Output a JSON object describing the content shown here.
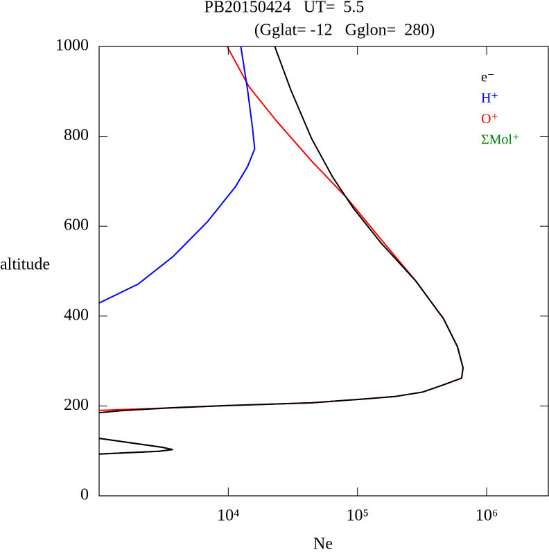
{
  "chart_data": {
    "type": "line",
    "title": "PB20150424   UT=  5.5",
    "subtitle": "(Gglat= -12   Gglon=  280)",
    "x_label": "Ne",
    "y_label": "altitude",
    "x_scale": "log",
    "xlim": [
      1000,
      3000000
    ],
    "ylim": [
      0,
      1000
    ],
    "xticks": [
      {
        "value": 10000,
        "label": "10⁴"
      },
      {
        "value": 100000,
        "label": "10⁵"
      },
      {
        "value": 1000000,
        "label": "10⁶"
      }
    ],
    "yticks": [
      0,
      200,
      400,
      600,
      800,
      1000
    ],
    "legend_position": "upper right",
    "series": [
      {
        "name": "e⁻",
        "color": "#000000",
        "x": [
          22900,
          30500,
          44100,
          64000,
          92900,
          152000,
          283000,
          464000,
          594000,
          656000,
          640000,
          464000,
          320000,
          195000,
          119000,
          44100,
          10000,
          3720,
          1560,
          1000,
          null,
          1000,
          3080,
          3720,
          2900,
          1000
        ],
        "y": [
          1000,
          903,
          795,
          710,
          640,
          563,
          478,
          394,
          332,
          285,
          262,
          247,
          231,
          221,
          216,
          207,
          201,
          196,
          190,
          185,
          null,
          128,
          108,
          103,
          99,
          93
        ]
      },
      {
        "name": "H⁺",
        "color": "#0000ff",
        "x": [
          12500,
          14100,
          15400,
          16000,
          14100,
          11300,
          6900,
          3720,
          2000,
          1000
        ],
        "y": [
          1000,
          903,
          818,
          772,
          733,
          687,
          610,
          532,
          471,
          429
        ]
      },
      {
        "name": "O⁺",
        "color": "#ff0000",
        "x": [
          9800,
          14500,
          23800,
          44100,
          82000,
          152000,
          283000,
          464000,
          594000,
          656000,
          640000,
          464000,
          320000,
          195000,
          119000,
          44100,
          10000,
          3720,
          1000
        ],
        "y": [
          1000,
          910,
          833,
          745,
          664,
          571,
          478,
          394,
          332,
          285,
          262,
          247,
          231,
          221,
          216,
          207,
          201,
          196,
          190
        ]
      },
      {
        "name": "ΣMol⁺",
        "color": "#008000",
        "x": [
          1000,
          3080,
          3720,
          2900,
          1000
        ],
        "y": [
          128,
          108,
          103,
          99,
          93
        ]
      }
    ]
  }
}
